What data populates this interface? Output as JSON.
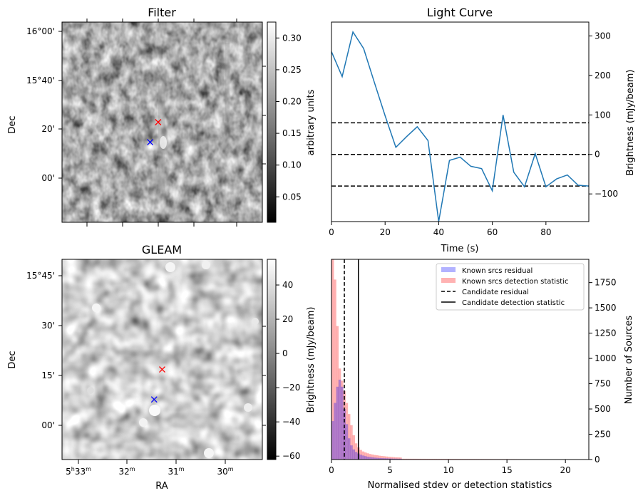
{
  "chart_data": [
    {
      "type": "heatmap",
      "title": "Filter",
      "xlabel": "",
      "ylabel": "Dec",
      "y_ticks": [
        "16°00'",
        "15°40'",
        "20'",
        "00'"
      ],
      "colorbar_label": "arbitrary units",
      "colorbar_ticks": [
        0.05,
        0.1,
        0.15,
        0.2,
        0.25,
        0.3
      ],
      "colorbar_labels": [
        "0.05",
        "0.10",
        "0.15",
        "0.20",
        "0.25",
        "0.30"
      ],
      "colorbar_range": [
        0.01,
        0.325
      ],
      "colormap": "gray",
      "markers": [
        {
          "name": "red-cross",
          "color": "#ff0000",
          "u": 0.48,
          "v": 0.5
        },
        {
          "name": "blue-cross",
          "color": "#0000ff",
          "u": 0.44,
          "v": 0.6
        }
      ]
    },
    {
      "type": "line",
      "title": "Light Curve",
      "xlabel": "Time (s)",
      "ylabel": "Brightness (mJy/beam)",
      "xlim": [
        0,
        96
      ],
      "ylim": [
        -170,
        335
      ],
      "x_ticks": [
        0,
        20,
        40,
        60,
        80
      ],
      "y_ticks": [
        -100,
        0,
        100,
        200,
        300
      ],
      "y_tick_labels": [
        "−100",
        "0",
        "100",
        "200",
        "300"
      ],
      "line_color": "#1f77b4",
      "series": [
        {
          "x": [
            0,
            4,
            8,
            12,
            16,
            20,
            24,
            28,
            32,
            36,
            40,
            44,
            48,
            52,
            56,
            60,
            64,
            68,
            72,
            76,
            80,
            84,
            88,
            92,
            96
          ],
          "values": [
            260,
            197,
            310,
            268,
            182,
            98,
            18,
            45,
            70,
            35,
            -170,
            -15,
            -7,
            -30,
            -36,
            -92,
            100,
            -45,
            -82,
            2,
            -82,
            -62,
            -52,
            -78,
            -80
          ]
        }
      ],
      "hlines": [
        {
          "y": 80,
          "style": "dashed",
          "color": "#000000"
        },
        {
          "y": 0,
          "style": "dashed",
          "color": "#000000"
        },
        {
          "y": -80,
          "style": "dashed",
          "color": "#000000"
        }
      ]
    },
    {
      "type": "heatmap",
      "title": "GLEAM",
      "xlabel": "RA",
      "ylabel": "Dec",
      "x_ticks": [
        "5h33m",
        "32m",
        "31m",
        "30m"
      ],
      "y_ticks": [
        "15°45'",
        "30'",
        "15'",
        "00'"
      ],
      "colorbar_label": "Brightness (mJy/beam)",
      "colorbar_ticks": [
        -60,
        -40,
        -20,
        0,
        20,
        40
      ],
      "colorbar_labels": [
        "−60",
        "−40",
        "−20",
        "0",
        "20",
        "40"
      ],
      "colorbar_range": [
        -62,
        55
      ],
      "colormap": "gray",
      "markers": [
        {
          "name": "red-cross",
          "color": "#ff0000",
          "u": 0.5,
          "v": 0.55
        },
        {
          "name": "blue-cross",
          "color": "#0000ff",
          "u": 0.46,
          "v": 0.7
        }
      ]
    },
    {
      "type": "histogram",
      "xlabel": "Normalised stdev or detection statistics",
      "ylabel": "Number of Sources",
      "xlim": [
        0,
        22
      ],
      "ylim": [
        0,
        1980
      ],
      "x_ticks": [
        0,
        5,
        10,
        15,
        20
      ],
      "y_ticks": [
        0,
        250,
        500,
        750,
        1000,
        1250,
        1500,
        1750
      ],
      "bin_width": 0.2,
      "series": [
        {
          "name": "Known srcs residual",
          "color": "#0000ff",
          "values": [
            380,
            560,
            720,
            790,
            720,
            500,
            350,
            210,
            140,
            100,
            75,
            60,
            48,
            40,
            34,
            28,
            25,
            22,
            19,
            17,
            15,
            14,
            13,
            12,
            11,
            10,
            9,
            9,
            8,
            8
          ]
        },
        {
          "name": "Known srcs detection statistic",
          "color": "#ff0000",
          "values": [
            1980,
            1780,
            1320,
            900,
            780,
            680,
            560,
            450,
            340,
            240,
            160,
            120,
            95,
            80,
            70,
            62,
            55,
            50,
            45,
            42,
            38,
            35,
            33,
            30,
            28,
            26,
            24,
            22,
            21,
            20
          ]
        }
      ],
      "tail_value": 8,
      "vlines": [
        {
          "name": "Candidate residual",
          "x": 1.1,
          "style": "dashed",
          "color": "#000000"
        },
        {
          "name": "Candidate detection statistic",
          "x": 2.3,
          "style": "solid",
          "color": "#000000"
        }
      ],
      "legend_position": "top-right"
    }
  ]
}
